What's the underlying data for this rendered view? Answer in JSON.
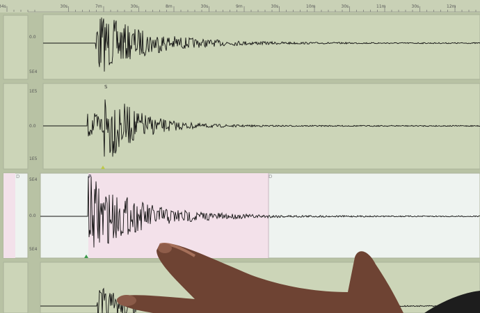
{
  "time_axis": {
    "labels": [
      "34s",
      "30s",
      "7m",
      "30s",
      "8m",
      "30s",
      "9m",
      "30s",
      "10m",
      "30s",
      "11m",
      "30s",
      "12m",
      "30s"
    ]
  },
  "channels": [
    {
      "amp_labels": [
        "0.0",
        "5E4"
      ],
      "background": "#ccd5b8"
    },
    {
      "amp_labels": [
        "1E5",
        "0.0",
        "1E5"
      ],
      "phase_marker": "S",
      "background": "#ccd5b8"
    },
    {
      "amp_labels": [
        "5E4",
        "0.0",
        "5E4"
      ],
      "phase_marker": "P",
      "window_marker": "D",
      "background": "#eef3f0",
      "window_color": "#f3e1ea"
    }
  ],
  "colors": {
    "screen": "#ccd5b8",
    "trace": "#111111",
    "skin": "#7a4a38"
  }
}
